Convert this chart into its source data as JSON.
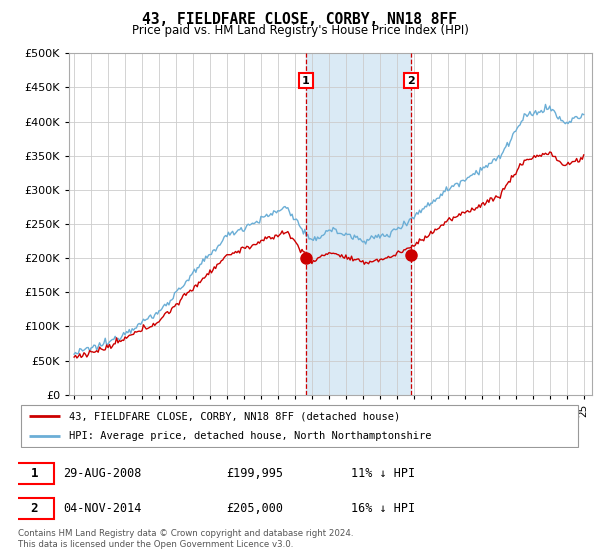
{
  "title": "43, FIELDFARE CLOSE, CORBY, NN18 8FF",
  "subtitle": "Price paid vs. HM Land Registry's House Price Index (HPI)",
  "legend_line1": "43, FIELDFARE CLOSE, CORBY, NN18 8FF (detached house)",
  "legend_line2": "HPI: Average price, detached house, North Northamptonshire",
  "annotation1_date": "29-AUG-2008",
  "annotation1_price": "£199,995",
  "annotation1_hpi": "11% ↓ HPI",
  "annotation2_date": "04-NOV-2014",
  "annotation2_price": "£205,000",
  "annotation2_hpi": "16% ↓ HPI",
  "footer": "Contains HM Land Registry data © Crown copyright and database right 2024.\nThis data is licensed under the Open Government Licence v3.0.",
  "sale1_year": 2008.65,
  "sale1_value": 199995,
  "sale2_year": 2014.84,
  "sale2_value": 205000,
  "hpi_color": "#6baed6",
  "sold_color": "#cc0000",
  "shade_color": "#daeaf5",
  "dashed_color": "#cc0000",
  "ylim": [
    0,
    500000
  ],
  "yticks": [
    0,
    50000,
    100000,
    150000,
    200000,
    250000,
    300000,
    350000,
    400000,
    450000,
    500000
  ],
  "xlim_start": 1994.7,
  "xlim_end": 2025.5
}
